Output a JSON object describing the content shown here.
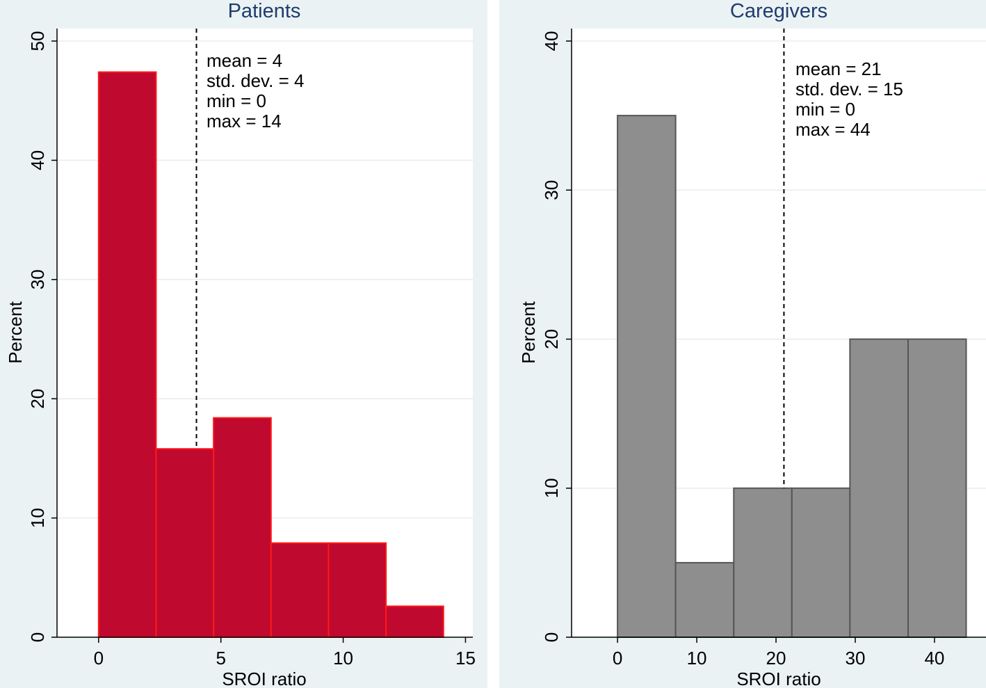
{
  "chart_data": [
    {
      "type": "bar",
      "subtype": "histogram",
      "title": "Patients",
      "xlabel": "SROI ratio",
      "ylabel": "Percent",
      "xlim": [
        -1.7,
        15.3
      ],
      "ylim": [
        0,
        50
      ],
      "xticks": [
        0,
        5,
        10,
        15
      ],
      "yticks": [
        0,
        10,
        20,
        30,
        40,
        50
      ],
      "grid": true,
      "bins": [
        {
          "start": 0.0,
          "end": 2.35,
          "value": 47.4
        },
        {
          "start": 2.35,
          "end": 4.7,
          "value": 15.8
        },
        {
          "start": 4.7,
          "end": 7.05,
          "value": 18.4
        },
        {
          "start": 7.05,
          "end": 9.4,
          "value": 7.9
        },
        {
          "start": 9.4,
          "end": 11.75,
          "value": 7.9
        },
        {
          "start": 11.75,
          "end": 14.1,
          "value": 2.6
        }
      ],
      "mean_line": 4,
      "stats": [
        "mean = 4",
        "std. dev. = 4",
        "min = 0",
        "max = 14"
      ],
      "bar_fill": "#c0092e",
      "bar_stroke": "#ff1a1a"
    },
    {
      "type": "bar",
      "subtype": "histogram",
      "title": "Caregivers",
      "xlabel": "SROI ratio",
      "ylabel": "Percent",
      "xlim": [
        -5.8,
        46.5
      ],
      "ylim": [
        0,
        40
      ],
      "xticks": [
        0,
        10,
        20,
        30,
        40
      ],
      "yticks": [
        0,
        10,
        20,
        30,
        40
      ],
      "grid": true,
      "bins": [
        {
          "start": 0.0,
          "end": 7.33,
          "value": 35
        },
        {
          "start": 7.33,
          "end": 14.67,
          "value": 5
        },
        {
          "start": 14.67,
          "end": 22.0,
          "value": 10
        },
        {
          "start": 22.0,
          "end": 29.33,
          "value": 10
        },
        {
          "start": 29.33,
          "end": 36.67,
          "value": 20
        },
        {
          "start": 36.67,
          "end": 44.0,
          "value": 20
        }
      ],
      "mean_line": 21,
      "stats": [
        "mean = 21",
        "std. dev. = 15",
        "min = 0",
        "max = 44"
      ],
      "bar_fill": "#8e8e8e",
      "bar_stroke": "#555555"
    }
  ]
}
